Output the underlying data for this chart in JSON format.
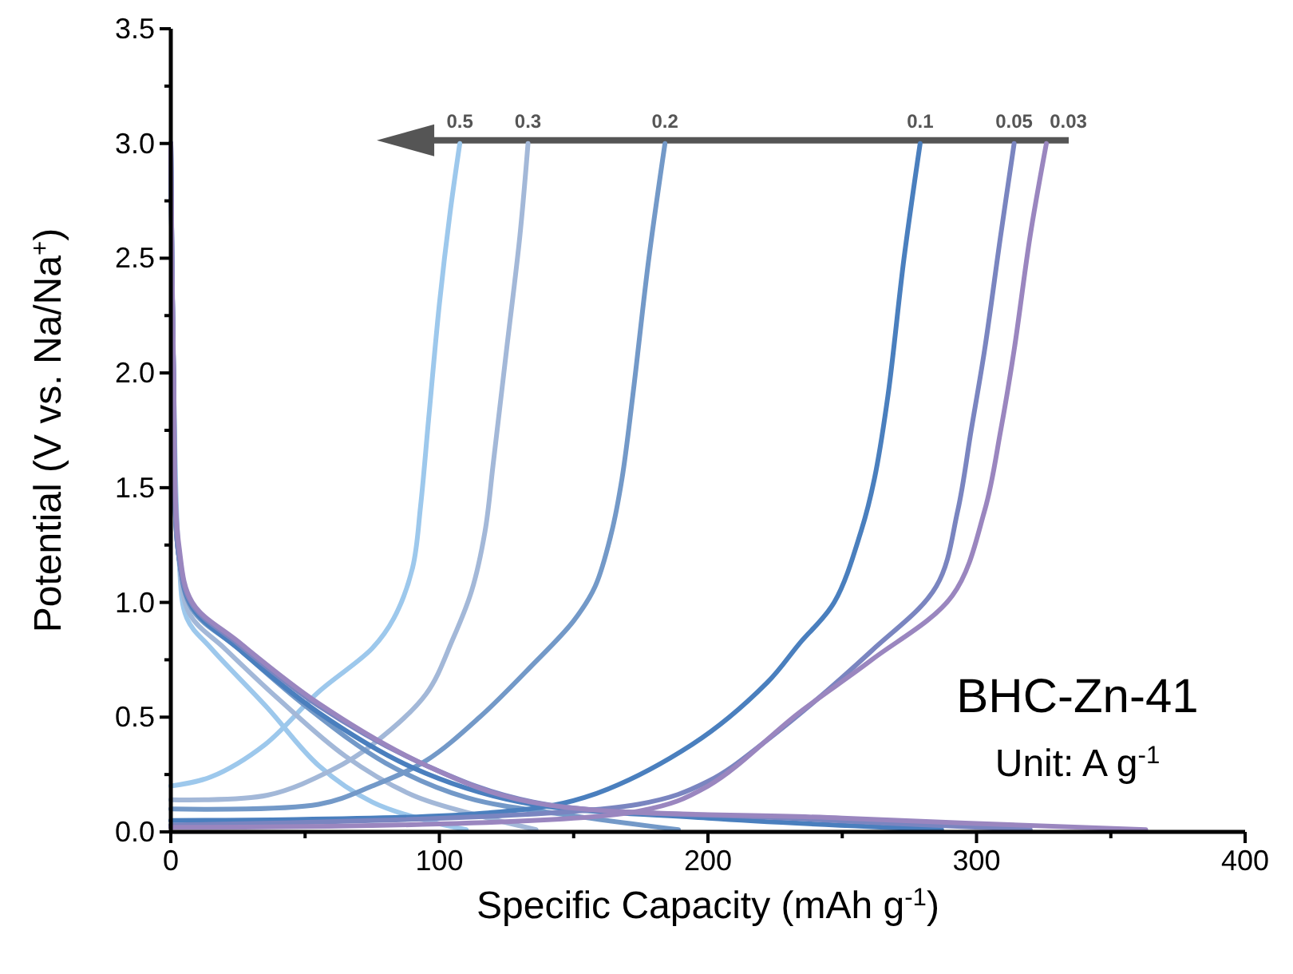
{
  "chart_data": {
    "type": "line",
    "xlabel": "Specific Capacity (mAh g$^{-1}$)",
    "ylabel": "Potential (V vs. Na/Na$^{+}$)",
    "xlim": [
      0,
      400
    ],
    "xticks": [
      0,
      {
        "value": 50,
        "label": null
      },
      100,
      {
        "value": 150,
        "label": null
      },
      200,
      {
        "value": 250,
        "label": null
      },
      300,
      {
        "value": 350,
        "label": null
      },
      400
    ],
    "ylim": [
      0,
      3.5
    ],
    "yticks": [
      {
        "value": 0,
        "label": "0.0"
      },
      {
        "value": 0.25,
        "label": null
      },
      0.5,
      {
        "value": 0.75,
        "label": null
      },
      {
        "value": 1,
        "label": "1.0"
      },
      {
        "value": 1.25,
        "label": null
      },
      1.5,
      {
        "value": 1.75,
        "label": null
      },
      {
        "value": 2,
        "label": "2.0"
      },
      {
        "value": 2.25,
        "label": null
      },
      2.5,
      {
        "value": 2.75,
        "label": null
      },
      {
        "value": 3,
        "label": "3.0"
      },
      {
        "value": 3.25,
        "label": null
      },
      3.5
    ],
    "grid": false,
    "line_style": "solid",
    "marker": "none",
    "annotations": [
      "BHC-Zn-41",
      "Unit: A g$^{-1}$"
    ],
    "series": [
      {
        "color": "#9dc8ec",
        "x": [
          0,
          1,
          3,
          6,
          15,
          36,
          55,
          75,
          95,
          110
        ],
        "values": [
          3.0,
          2.0,
          1.2,
          0.93,
          0.8,
          0.54,
          0.29,
          0.13,
          0.05,
          0.01
        ]
      },
      {
        "name": "0.5",
        "color": "#9dc8ec",
        "x": [
          0,
          15,
          35,
          55,
          75,
          83,
          90,
          93,
          96,
          100,
          104,
          107.6
        ],
        "values": [
          0.2,
          0.24,
          0.38,
          0.61,
          0.8,
          0.93,
          1.15,
          1.42,
          1.8,
          2.3,
          2.7,
          3.0
        ]
      },
      {
        "color": "#a3b8d8",
        "x": [
          0,
          1,
          3,
          7,
          20,
          40,
          65,
          90,
          115,
          136
        ],
        "values": [
          3.0,
          2.0,
          1.2,
          0.95,
          0.8,
          0.58,
          0.33,
          0.16,
          0.07,
          0.01
        ]
      },
      {
        "name": "0.3",
        "color": "#a3b8d8",
        "x": [
          0,
          36,
          60,
          75,
          95,
          105,
          112,
          117,
          120,
          125,
          130,
          133
        ],
        "values": [
          0.14,
          0.16,
          0.27,
          0.38,
          0.6,
          0.84,
          1.05,
          1.31,
          1.6,
          2.1,
          2.6,
          3.0
        ]
      },
      {
        "color": "#7399c8",
        "x": [
          0,
          1,
          3,
          8,
          25,
          50,
          80,
          110,
          150,
          189
        ],
        "values": [
          3.0,
          2.0,
          1.2,
          0.97,
          0.8,
          0.55,
          0.3,
          0.15,
          0.07,
          0.01
        ]
      },
      {
        "name": "0.2",
        "color": "#7399c8",
        "x": [
          0,
          55,
          75,
          95,
          115,
          134,
          150,
          158,
          164,
          168,
          172,
          178,
          184
        ],
        "values": [
          0.1,
          0.12,
          0.2,
          0.31,
          0.5,
          0.72,
          0.92,
          1.07,
          1.3,
          1.54,
          1.9,
          2.5,
          3.0
        ]
      },
      {
        "color": "#4a7fbe",
        "x": [
          0,
          1,
          3,
          8,
          25,
          55,
          90,
          130,
          200,
          287
        ],
        "values": [
          3.0,
          2.0,
          1.2,
          0.98,
          0.8,
          0.52,
          0.28,
          0.13,
          0.06,
          0.01
        ]
      },
      {
        "name": "0.1",
        "color": "#4a7fbe",
        "x": [
          0,
          115,
          154,
          194,
          222,
          234,
          247,
          257,
          262,
          267,
          273,
          279
        ],
        "values": [
          0.05,
          0.08,
          0.15,
          0.38,
          0.65,
          0.82,
          1.0,
          1.31,
          1.54,
          1.9,
          2.5,
          3.0
        ]
      },
      {
        "color": "#7a85c0",
        "x": [
          0,
          1,
          3,
          8,
          25,
          55,
          95,
          135,
          230,
          320
        ],
        "values": [
          3.0,
          2.0,
          1.2,
          0.99,
          0.82,
          0.55,
          0.29,
          0.13,
          0.06,
          0.01
        ]
      },
      {
        "name": "0.05",
        "color": "#7a85c0",
        "x": [
          0,
          174,
          200,
          222,
          261,
          285,
          293,
          298,
          303,
          309,
          314
        ],
        "values": [
          0.03,
          0.12,
          0.22,
          0.4,
          0.79,
          1.07,
          1.4,
          1.75,
          2.1,
          2.6,
          3.0
        ]
      },
      {
        "color": "#9a86bf",
        "x": [
          0,
          1,
          3,
          8,
          25,
          55,
          95,
          134,
          250,
          363
        ],
        "values": [
          3.0,
          2.05,
          1.25,
          1.0,
          0.83,
          0.56,
          0.29,
          0.13,
          0.06,
          0.01
        ]
      },
      {
        "name": "0.03",
        "color": "#9a86bf",
        "x": [
          0,
          174,
          200,
          234,
          261,
          291,
          303,
          309,
          314,
          320,
          326
        ],
        "values": [
          0.02,
          0.09,
          0.2,
          0.52,
          0.75,
          1.03,
          1.4,
          1.75,
          2.1,
          2.6,
          3.0
        ]
      }
    ]
  }
}
